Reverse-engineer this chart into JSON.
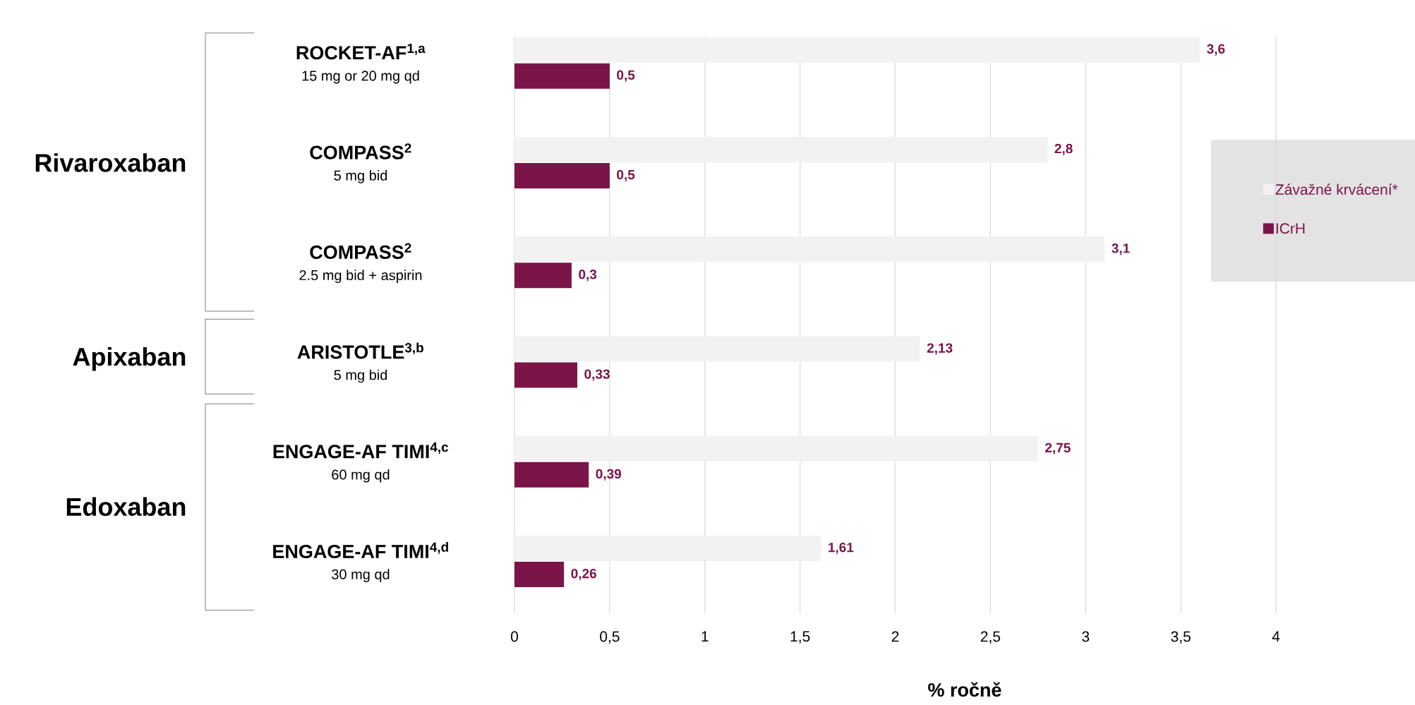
{
  "chart_data": {
    "type": "bar",
    "orientation": "horizontal",
    "categories": [
      "ROCKET-AF$^{1,a}$",
      "COMPASS$^{2}$",
      "COMPASS$^{2}$",
      "ARISTOTLE$^{3,b}$",
      "ENGAGE-AF TIMI$^{4,c}$",
      "ENGAGE-AF TIMI$^{4,d}$"
    ],
    "series": [
      {
        "name": "Závažné krvácení*",
        "color": "#f2f2f2",
        "values": [
          3.6,
          2.8,
          3.1,
          2.13,
          2.75,
          1.61
        ],
        "value_labels": [
          "3,6",
          "2,8",
          "3,1",
          "2,13",
          "2,75",
          "1,61"
        ]
      },
      {
        "name": "ICrH",
        "color": "#7b1548",
        "values": [
          0.5,
          0.5,
          0.3,
          0.33,
          0.39,
          0.26
        ],
        "value_labels": [
          "0,5",
          "0,5",
          "0,3",
          "0,33",
          "0,39",
          "0,26"
        ]
      }
    ],
    "xlabel": "% ročně",
    "xlim": [
      0,
      4.73
    ],
    "xticks": [
      0,
      {
        "value": 0.5,
        "label": "0,5"
      },
      1,
      {
        "value": 1.5,
        "label": "1,5"
      },
      2,
      {
        "value": 2.5,
        "label": "2,5"
      },
      3,
      {
        "value": 3.5,
        "label": "3,5"
      },
      4
    ],
    "grid": "x",
    "legend": "right",
    "annotations": [
      "Rivaroxaban",
      "Apixaban",
      "Edoxaban",
      "15 mg or 20 mg qd",
      "5 mg bid",
      "2.5 mg bid + aspirin",
      "5 mg bid",
      "60 mg qd",
      "30 mg qd"
    ]
  }
}
